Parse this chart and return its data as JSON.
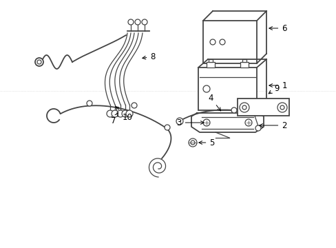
{
  "bg_color": "#ffffff",
  "line_color": "#444444",
  "lw_main": 1.3,
  "lw_thin": 0.9,
  "fs_label": 8.5
}
